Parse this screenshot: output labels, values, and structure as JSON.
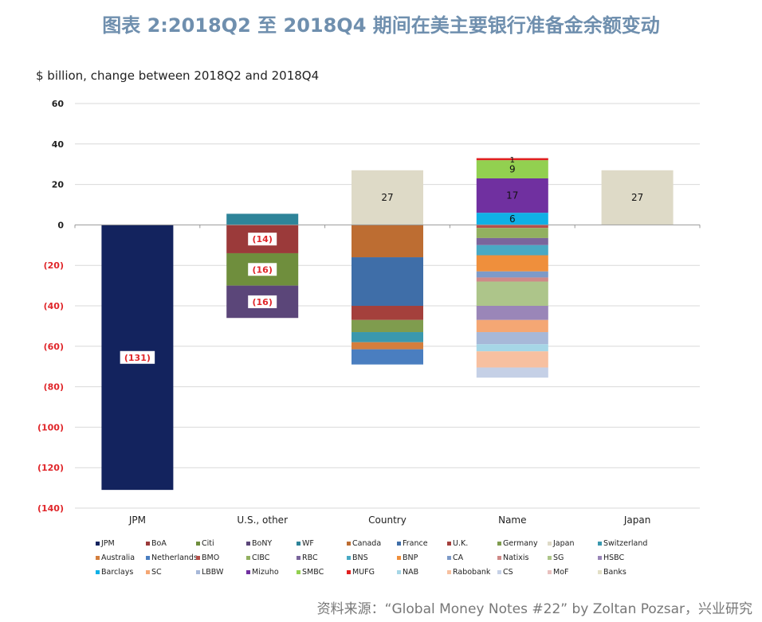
{
  "title": "图表 2:2018Q2 至 2018Q4 期间在美主要银行准备金余额变动",
  "source": "资料来源：“Global Money Notes #22” by Zoltan Pozsar，兴业研究",
  "chart_data": {
    "type": "bar",
    "subtitle": "$ billion, change between 2018Q2 and 2018Q4",
    "ylim": [
      -140,
      60
    ],
    "yticks": [
      60,
      40,
      20,
      0,
      -20,
      -40,
      -60,
      -80,
      -100,
      -120,
      -140
    ],
    "ytick_labels": [
      "60",
      "40",
      "20",
      "0",
      "(20)",
      "(40)",
      "(60)",
      "(80)",
      "(100)",
      "(120)",
      "(140)"
    ],
    "grid": true,
    "legend_position": "bottom",
    "categories": [
      "JPM",
      "U.S., other",
      "Country",
      "Name",
      "Japan"
    ],
    "series": [
      {
        "name": "JPM",
        "color": "#13235e",
        "values": [
          -131,
          0,
          0,
          0,
          0
        ]
      },
      {
        "name": "BoA",
        "color": "#9b3a3a",
        "values": [
          0,
          -14,
          0,
          0,
          0
        ]
      },
      {
        "name": "Citi",
        "color": "#6f8e3d",
        "values": [
          0,
          -16,
          0,
          0,
          0
        ]
      },
      {
        "name": "BoNY",
        "color": "#5b4679",
        "values": [
          0,
          -16,
          0,
          0,
          0
        ]
      },
      {
        "name": "WF",
        "color": "#2e8499",
        "values": [
          0,
          5.5,
          0,
          0,
          0
        ]
      },
      {
        "name": "Canada",
        "color": "#bd6d32",
        "values": [
          0,
          0,
          -16,
          0,
          0
        ]
      },
      {
        "name": "France",
        "color": "#3f6ea8",
        "values": [
          0,
          0,
          -24,
          0,
          0
        ]
      },
      {
        "name": "U.K.",
        "color": "#a4403c",
        "values": [
          0,
          0,
          -7,
          0,
          0
        ]
      },
      {
        "name": "Germany",
        "color": "#7f9c4e",
        "values": [
          0,
          0,
          -6,
          0,
          0
        ]
      },
      {
        "name": "Japan",
        "color": "#dedac7",
        "values": [
          0,
          0,
          27,
          0,
          27
        ]
      },
      {
        "name": "Switzerland",
        "color": "#3a98ae",
        "values": [
          0,
          0,
          -5,
          0,
          0
        ]
      },
      {
        "name": "Australia",
        "color": "#d47e3d",
        "values": [
          0,
          0,
          -3.5,
          0,
          0
        ]
      },
      {
        "name": "Netherlands",
        "color": "#4a7ec0",
        "values": [
          0,
          0,
          -7.5,
          0,
          0
        ]
      },
      {
        "name": "BMO",
        "color": "#b5504b",
        "values": [
          0,
          0,
          0,
          -1.5,
          0
        ]
      },
      {
        "name": "CIBC",
        "color": "#92b060",
        "values": [
          0,
          0,
          0,
          -5,
          0
        ]
      },
      {
        "name": "RBC",
        "color": "#7a659c",
        "values": [
          0,
          0,
          0,
          -3.5,
          0
        ]
      },
      {
        "name": "BNS",
        "color": "#49a9c4",
        "values": [
          0,
          0,
          0,
          -5,
          0
        ]
      },
      {
        "name": "BNP",
        "color": "#ef8f3c",
        "values": [
          0,
          0,
          0,
          -8,
          0
        ]
      },
      {
        "name": "CA",
        "color": "#7d9ac8",
        "values": [
          0,
          0,
          0,
          -3,
          0
        ]
      },
      {
        "name": "Natixis",
        "color": "#cf8a88",
        "values": [
          0,
          0,
          0,
          -2,
          0
        ]
      },
      {
        "name": "SG",
        "color": "#adc58a",
        "values": [
          0,
          0,
          0,
          -12,
          0
        ]
      },
      {
        "name": "HSBC",
        "color": "#9a86b8",
        "values": [
          0,
          0,
          0,
          -7,
          0
        ]
      },
      {
        "name": "Barclays",
        "color": "#0fb0e6",
        "values": [
          0,
          0,
          0,
          6,
          0
        ]
      },
      {
        "name": "SC",
        "color": "#f4a774",
        "values": [
          0,
          0,
          0,
          -6,
          0
        ]
      },
      {
        "name": "LBBW",
        "color": "#a7b8d8",
        "values": [
          0,
          0,
          0,
          -6,
          0
        ]
      },
      {
        "name": "Mizuho",
        "color": "#7030a0",
        "values": [
          0,
          0,
          0,
          17,
          0
        ]
      },
      {
        "name": "SMBC",
        "color": "#92d050",
        "values": [
          0,
          0,
          0,
          9,
          0
        ]
      },
      {
        "name": "MUFG",
        "color": "#e02020",
        "values": [
          0,
          0,
          0,
          1,
          0
        ]
      },
      {
        "name": "NAB",
        "color": "#a6d6e6",
        "values": [
          0,
          0,
          0,
          -3.5,
          0
        ]
      },
      {
        "name": "Rabobank",
        "color": "#f7c0a0",
        "values": [
          0,
          0,
          0,
          -8,
          0
        ]
      },
      {
        "name": "CS",
        "color": "#c5d0e6",
        "values": [
          0,
          0,
          0,
          -5,
          0
        ]
      },
      {
        "name": "MoF",
        "color": "#e8c0be",
        "values": [
          0,
          0,
          0,
          0,
          0
        ]
      },
      {
        "name": "Banks",
        "color": "#e2dfc6",
        "values": [
          0,
          0,
          0,
          0,
          0
        ]
      }
    ],
    "data_labels": [
      {
        "category": "JPM",
        "series": "JPM",
        "text": "(131)",
        "style": "negative"
      },
      {
        "category": "U.S., other",
        "series": "BoA",
        "text": "(14)",
        "style": "negative"
      },
      {
        "category": "U.S., other",
        "series": "Citi",
        "text": "(16)",
        "style": "negative"
      },
      {
        "category": "U.S., other",
        "series": "BoNY",
        "text": "(16)",
        "style": "negative"
      },
      {
        "category": "Country",
        "series": "Japan",
        "text": "27",
        "style": "plain"
      },
      {
        "category": "Name",
        "series": "Barclays",
        "text": "6",
        "style": "plain"
      },
      {
        "category": "Name",
        "series": "Mizuho",
        "text": "17",
        "style": "plain"
      },
      {
        "category": "Name",
        "series": "SMBC",
        "text": "9",
        "style": "plain"
      },
      {
        "category": "Name",
        "series": "MUFG",
        "text": "1",
        "style": "plain"
      },
      {
        "category": "Japan",
        "series": "Japan",
        "text": "27",
        "style": "plain"
      }
    ]
  }
}
